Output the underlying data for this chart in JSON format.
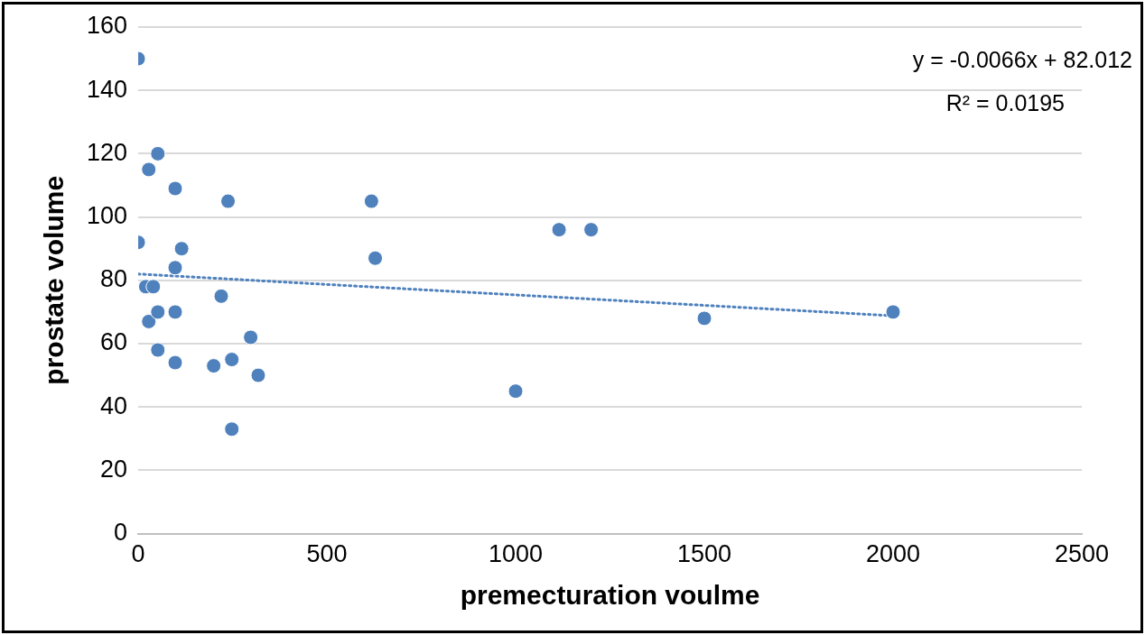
{
  "chart_data": {
    "type": "scatter",
    "xlabel": "premecturation voulme",
    "ylabel": "prostate volume",
    "xlim": [
      0,
      2500
    ],
    "xticks": [
      0,
      500,
      1000,
      1500,
      2000,
      2500
    ],
    "ylim": [
      0,
      160
    ],
    "yticks": [
      0,
      20,
      40,
      60,
      80,
      100,
      120,
      140,
      160
    ],
    "grid": "y",
    "legend": false,
    "marker": "circle",
    "annotations": [
      "y = -0.0066x + 82.012",
      "R² = 0.0195"
    ],
    "series": [
      {
        "type": "scatter",
        "color": "#4f81bd",
        "x": [
          0,
          0,
          28,
          52,
          98,
          115,
          98,
          20,
          40,
          28,
          52,
          98,
          52,
          98,
          220,
          238,
          200,
          248,
          298,
          318,
          248,
          618,
          628,
          1115,
          1200,
          1000,
          1500,
          2000
        ],
        "values": [
          150,
          92,
          115,
          120,
          109,
          90,
          84,
          78,
          78,
          67,
          70,
          70,
          58,
          54,
          75,
          105,
          53,
          55,
          62,
          50,
          33,
          105,
          87,
          96,
          96,
          45,
          68,
          70
        ]
      },
      {
        "type": "line",
        "color": "#4f81bd",
        "line_style": "dotted",
        "marker": "none",
        "x": [
          0,
          2000
        ],
        "values": [
          82.0,
          68.8
        ]
      }
    ]
  }
}
